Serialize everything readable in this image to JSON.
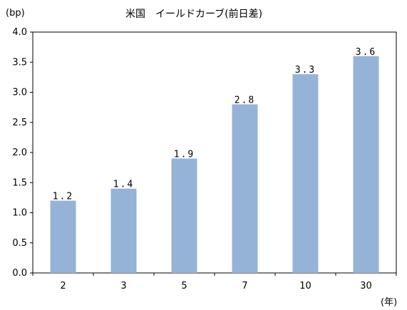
{
  "chart_data": {
    "type": "bar",
    "title": "米国　イールドカーブ(前日差)",
    "y_unit": "(bp)",
    "x_unit": "(年)",
    "categories": [
      "2",
      "3",
      "5",
      "7",
      "10",
      "30"
    ],
    "values": [
      1.2,
      1.4,
      1.9,
      2.8,
      3.3,
      3.6
    ],
    "data_labels": [
      "1.2",
      "1.4",
      "1.9",
      "2.8",
      "3.3",
      "3.6"
    ],
    "ylim": [
      0,
      4
    ],
    "yticks": [
      "0.0",
      "0.5",
      "1.0",
      "1.5",
      "2.0",
      "2.5",
      "3.0",
      "3.5",
      "4.0"
    ],
    "grid": false,
    "bar_color": "#95b3d7",
    "axis_color": "#000000"
  }
}
